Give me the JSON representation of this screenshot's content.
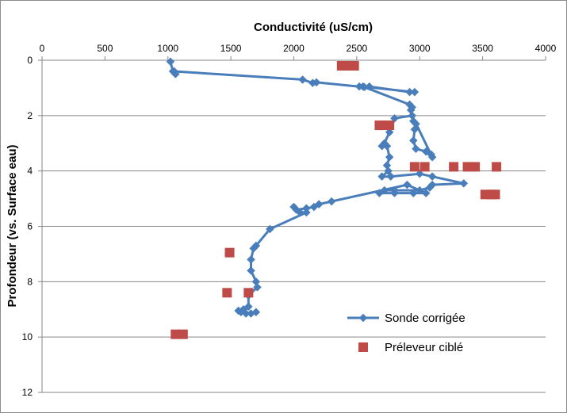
{
  "chart_data": {
    "type": "scatter",
    "title": "",
    "xlabel": "Conductivité  (uS/cm)",
    "ylabel": "Profondeur  (vs. Surface eau)",
    "xlim": [
      0,
      4000
    ],
    "ylim": [
      0,
      12
    ],
    "y_inverted": true,
    "x_axis_position": "top",
    "x_ticks": [
      0,
      500,
      1000,
      1500,
      2000,
      2500,
      3000,
      3500,
      4000
    ],
    "y_ticks": [
      0,
      2,
      4,
      6,
      8,
      10,
      12
    ],
    "grid": "horizontal",
    "legend_position": "bottom-right",
    "series": [
      {
        "name": "Sonde corrigée",
        "style": "line-markers",
        "marker": "diamond",
        "color": "#4a7ebb",
        "points": [
          [
            1020,
            0.05
          ],
          [
            1040,
            0.4
          ],
          [
            1060,
            0.5
          ],
          [
            1050,
            0.4
          ],
          [
            2070,
            0.7
          ],
          [
            2150,
            0.82
          ],
          [
            2180,
            0.8
          ],
          [
            2520,
            0.95
          ],
          [
            2560,
            0.97
          ],
          [
            2600,
            0.95
          ],
          [
            2920,
            1.15
          ],
          [
            2960,
            1.15
          ],
          [
            2550,
            0.95
          ],
          [
            2920,
            1.6
          ],
          [
            2940,
            1.7
          ],
          [
            2930,
            1.8
          ],
          [
            2950,
            2.2
          ],
          [
            2970,
            2.3
          ],
          [
            2960,
            2.5
          ],
          [
            2950,
            2.9
          ],
          [
            2970,
            3.2
          ],
          [
            3050,
            3.3
          ],
          [
            3090,
            3.4
          ],
          [
            3100,
            3.5
          ],
          [
            2940,
            2.0
          ],
          [
            2800,
            2.1
          ],
          [
            2760,
            2.6
          ],
          [
            2720,
            3.0
          ],
          [
            2700,
            3.1
          ],
          [
            2740,
            3.1
          ],
          [
            2760,
            3.5
          ],
          [
            2740,
            3.8
          ],
          [
            2750,
            4.0
          ],
          [
            2700,
            4.2
          ],
          [
            2770,
            4.2
          ],
          [
            3000,
            4.1
          ],
          [
            3100,
            4.2
          ],
          [
            3350,
            4.45
          ],
          [
            3100,
            4.5
          ],
          [
            3080,
            4.6
          ],
          [
            3000,
            4.7
          ],
          [
            2800,
            4.7
          ],
          [
            2720,
            4.7
          ],
          [
            2680,
            4.8
          ],
          [
            2800,
            4.8
          ],
          [
            2950,
            4.8
          ],
          [
            3050,
            4.8
          ],
          [
            2900,
            4.5
          ],
          [
            2300,
            5.1
          ],
          [
            2200,
            5.2
          ],
          [
            2160,
            5.3
          ],
          [
            2100,
            5.35
          ],
          [
            2020,
            5.4
          ],
          [
            2000,
            5.3
          ],
          [
            2050,
            5.5
          ],
          [
            2100,
            5.5
          ],
          [
            1810,
            6.1
          ],
          [
            1700,
            6.7
          ],
          [
            1680,
            6.8
          ],
          [
            1660,
            7.2
          ],
          [
            1660,
            7.6
          ],
          [
            1700,
            8.0
          ],
          [
            1710,
            8.2
          ],
          [
            1640,
            8.5
          ],
          [
            1640,
            8.9
          ],
          [
            1600,
            9.0
          ],
          [
            1560,
            9.05
          ],
          [
            1580,
            9.1
          ],
          [
            1620,
            9.15
          ],
          [
            1660,
            9.15
          ],
          [
            1700,
            9.1
          ]
        ]
      },
      {
        "name": "Préleveur ciblé",
        "style": "markers",
        "marker": "square",
        "color": "#be4b48",
        "points": [
          [
            2380,
            0.2
          ],
          [
            2440,
            0.2
          ],
          [
            2480,
            0.2
          ],
          [
            2680,
            2.35
          ],
          [
            2730,
            2.35
          ],
          [
            2760,
            2.35
          ],
          [
            2960,
            3.85
          ],
          [
            3040,
            3.85
          ],
          [
            3270,
            3.85
          ],
          [
            3380,
            3.85
          ],
          [
            3440,
            3.85
          ],
          [
            3610,
            3.85
          ],
          [
            3520,
            4.85
          ],
          [
            3570,
            4.85
          ],
          [
            3600,
            4.85
          ],
          [
            1490,
            6.95
          ],
          [
            1470,
            8.4
          ],
          [
            1640,
            8.4
          ],
          [
            1060,
            9.9
          ],
          [
            1120,
            9.9
          ]
        ]
      }
    ]
  }
}
